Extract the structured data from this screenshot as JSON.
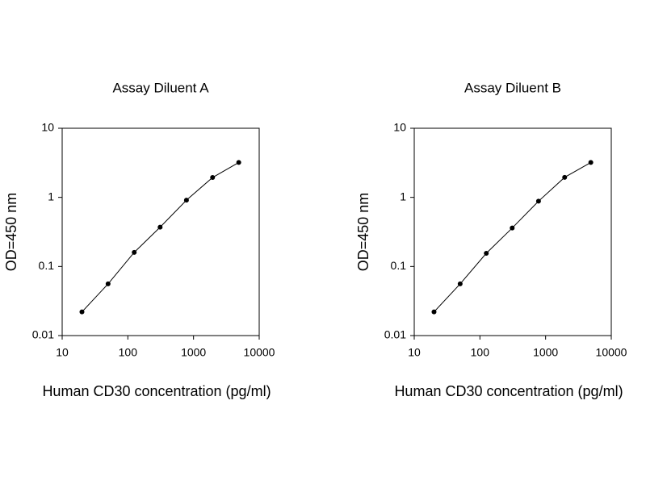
{
  "chart_data": [
    {
      "type": "line",
      "title": "Assay Diluent A",
      "x_label": "Human CD30 concentration (pg/ml)",
      "y_label": "OD=450 nm",
      "x": [
        20,
        50,
        125,
        310,
        780,
        1950,
        4880
      ],
      "values": [
        0.022,
        0.056,
        0.16,
        0.37,
        0.91,
        1.94,
        3.2
      ],
      "color": "#000000",
      "x_log": true,
      "y_log": true,
      "xlim": [
        10,
        10000
      ],
      "xticks": [
        10,
        100,
        1000,
        10000
      ],
      "ylim": [
        0.01,
        10
      ],
      "yticks": [
        0.01,
        0.1,
        1,
        10
      ]
    },
    {
      "type": "line",
      "title": "Assay Diluent B",
      "x_label": "Human CD30 concentration (pg/ml)",
      "y_label": "OD=450 nm",
      "x": [
        20,
        50,
        125,
        310,
        780,
        1950,
        4880
      ],
      "values": [
        0.022,
        0.056,
        0.155,
        0.36,
        0.88,
        1.95,
        3.2
      ],
      "color": "#000000",
      "x_log": true,
      "y_log": true,
      "xlim": [
        10,
        10000
      ],
      "xticks": [
        10,
        100,
        1000,
        10000
      ],
      "ylim": [
        0.01,
        10
      ],
      "yticks": [
        0.01,
        0.1,
        1,
        10
      ]
    }
  ]
}
